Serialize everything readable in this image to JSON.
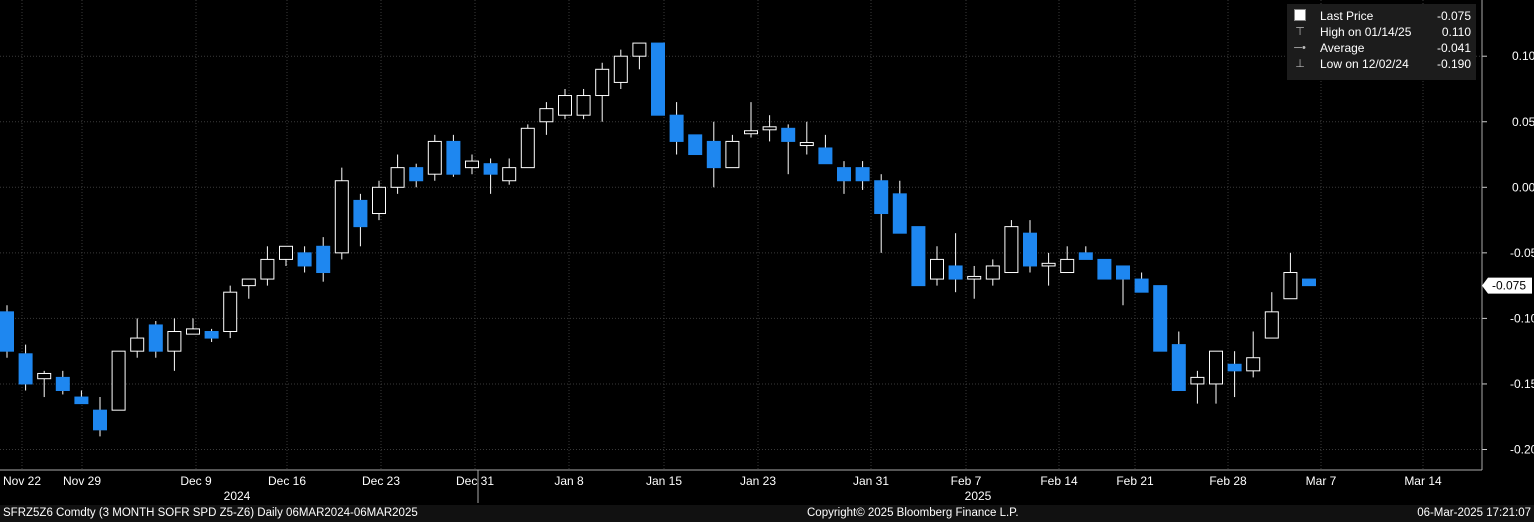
{
  "chart_data": {
    "type": "candlestick",
    "frequency": "Daily",
    "ylim": [
      -0.22,
      0.11
    ],
    "yticks": [
      0.1,
      0.05,
      0.0,
      -0.05,
      -0.1,
      -0.15,
      -0.2
    ],
    "ytick_labels": [
      "0.100",
      "0.050",
      "0.000",
      "-0.050",
      "-0.100",
      "-0.150",
      "-0.200"
    ],
    "grid": true,
    "xaxis_labels": [
      "Nov 22",
      "Nov 29",
      "Dec 9",
      "Dec 16",
      "Dec 23",
      "Dec 31",
      "Jan 8",
      "Jan 15",
      "Jan 23",
      "Jan 31",
      "Feb 7",
      "Feb 14",
      "Feb 21",
      "Feb 28",
      "Mar 7",
      "Mar 14"
    ],
    "year_labels": [
      "2024",
      "2025"
    ],
    "up_color": "#000000",
    "down_color": "#1e87f0",
    "candles": [
      {
        "o": -0.095,
        "h": -0.09,
        "l": -0.13,
        "c": -0.125
      },
      {
        "o": -0.127,
        "h": -0.12,
        "l": -0.155,
        "c": -0.15
      },
      {
        "o": -0.146,
        "h": -0.14,
        "l": -0.16,
        "c": -0.142
      },
      {
        "o": -0.145,
        "h": -0.14,
        "l": -0.158,
        "c": -0.155
      },
      {
        "o": -0.16,
        "h": -0.155,
        "l": -0.165,
        "c": -0.165
      },
      {
        "o": -0.17,
        "h": -0.16,
        "l": -0.19,
        "c": -0.185
      },
      {
        "o": -0.17,
        "h": -0.125,
        "l": -0.17,
        "c": -0.125
      },
      {
        "o": -0.125,
        "h": -0.1,
        "l": -0.13,
        "c": -0.115
      },
      {
        "o": -0.105,
        "h": -0.102,
        "l": -0.13,
        "c": -0.125
      },
      {
        "o": -0.125,
        "h": -0.1,
        "l": -0.14,
        "c": -0.11
      },
      {
        "o": -0.112,
        "h": -0.1,
        "l": -0.112,
        "c": -0.108
      },
      {
        "o": -0.11,
        "h": -0.108,
        "l": -0.118,
        "c": -0.115
      },
      {
        "o": -0.11,
        "h": -0.075,
        "l": -0.115,
        "c": -0.08
      },
      {
        "o": -0.075,
        "h": -0.07,
        "l": -0.085,
        "c": -0.07
      },
      {
        "o": -0.07,
        "h": -0.045,
        "l": -0.075,
        "c": -0.055
      },
      {
        "o": -0.055,
        "h": -0.045,
        "l": -0.06,
        "c": -0.045
      },
      {
        "o": -0.05,
        "h": -0.045,
        "l": -0.065,
        "c": -0.06
      },
      {
        "o": -0.045,
        "h": -0.038,
        "l": -0.072,
        "c": -0.065
      },
      {
        "o": -0.05,
        "h": 0.015,
        "l": -0.055,
        "c": 0.005
      },
      {
        "o": -0.01,
        "h": -0.005,
        "l": -0.045,
        "c": -0.03
      },
      {
        "o": -0.02,
        "h": 0.005,
        "l": -0.025,
        "c": 0.0
      },
      {
        "o": 0.0,
        "h": 0.025,
        "l": -0.005,
        "c": 0.015
      },
      {
        "o": 0.015,
        "h": 0.018,
        "l": 0.0,
        "c": 0.005
      },
      {
        "o": 0.01,
        "h": 0.04,
        "l": 0.005,
        "c": 0.035
      },
      {
        "o": 0.035,
        "h": 0.04,
        "l": 0.008,
        "c": 0.01
      },
      {
        "o": 0.015,
        "h": 0.025,
        "l": 0.01,
        "c": 0.02
      },
      {
        "o": 0.018,
        "h": 0.022,
        "l": -0.005,
        "c": 0.01
      },
      {
        "o": 0.005,
        "h": 0.022,
        "l": 0.002,
        "c": 0.015
      },
      {
        "o": 0.015,
        "h": 0.048,
        "l": 0.015,
        "c": 0.045
      },
      {
        "o": 0.05,
        "h": 0.065,
        "l": 0.04,
        "c": 0.06
      },
      {
        "o": 0.055,
        "h": 0.075,
        "l": 0.052,
        "c": 0.07
      },
      {
        "o": 0.055,
        "h": 0.075,
        "l": 0.052,
        "c": 0.07
      },
      {
        "o": 0.07,
        "h": 0.095,
        "l": 0.05,
        "c": 0.09
      },
      {
        "o": 0.08,
        "h": 0.105,
        "l": 0.075,
        "c": 0.1
      },
      {
        "o": 0.1,
        "h": 0.11,
        "l": 0.09,
        "c": 0.11
      },
      {
        "o": 0.11,
        "h": 0.11,
        "l": 0.055,
        "c": 0.055
      },
      {
        "o": 0.055,
        "h": 0.065,
        "l": 0.025,
        "c": 0.035
      },
      {
        "o": 0.04,
        "h": 0.04,
        "l": 0.025,
        "c": 0.025
      },
      {
        "o": 0.035,
        "h": 0.05,
        "l": 0.0,
        "c": 0.015
      },
      {
        "o": 0.015,
        "h": 0.04,
        "l": 0.015,
        "c": 0.035
      },
      {
        "o": 0.042,
        "h": 0.065,
        "l": 0.038,
        "c": 0.042
      },
      {
        "o": 0.045,
        "h": 0.055,
        "l": 0.035,
        "c": 0.045
      },
      {
        "o": 0.045,
        "h": 0.048,
        "l": 0.01,
        "c": 0.035
      },
      {
        "o": 0.033,
        "h": 0.05,
        "l": 0.025,
        "c": 0.033
      },
      {
        "o": 0.03,
        "h": 0.04,
        "l": 0.018,
        "c": 0.018
      },
      {
        "o": 0.015,
        "h": 0.02,
        "l": -0.005,
        "c": 0.005
      },
      {
        "o": 0.015,
        "h": 0.02,
        "l": -0.002,
        "c": 0.005
      },
      {
        "o": 0.005,
        "h": 0.01,
        "l": -0.05,
        "c": -0.02
      },
      {
        "o": -0.005,
        "h": 0.005,
        "l": -0.035,
        "c": -0.035
      },
      {
        "o": -0.03,
        "h": -0.03,
        "l": -0.075,
        "c": -0.075
      },
      {
        "o": -0.07,
        "h": -0.045,
        "l": -0.075,
        "c": -0.055
      },
      {
        "o": -0.06,
        "h": -0.035,
        "l": -0.08,
        "c": -0.07
      },
      {
        "o": -0.07,
        "h": -0.06,
        "l": -0.085,
        "c": -0.068
      },
      {
        "o": -0.07,
        "h": -0.055,
        "l": -0.075,
        "c": -0.06
      },
      {
        "o": -0.065,
        "h": -0.025,
        "l": -0.065,
        "c": -0.03
      },
      {
        "o": -0.035,
        "h": -0.025,
        "l": -0.065,
        "c": -0.06
      },
      {
        "o": -0.06,
        "h": -0.05,
        "l": -0.075,
        "c": -0.058
      },
      {
        "o": -0.065,
        "h": -0.045,
        "l": -0.065,
        "c": -0.055
      },
      {
        "o": -0.05,
        "h": -0.045,
        "l": -0.055,
        "c": -0.055
      },
      {
        "o": -0.055,
        "h": -0.055,
        "l": -0.07,
        "c": -0.07
      },
      {
        "o": -0.06,
        "h": -0.06,
        "l": -0.09,
        "c": -0.07
      },
      {
        "o": -0.07,
        "h": -0.065,
        "l": -0.08,
        "c": -0.08
      },
      {
        "o": -0.075,
        "h": -0.075,
        "l": -0.125,
        "c": -0.125
      },
      {
        "o": -0.12,
        "h": -0.11,
        "l": -0.155,
        "c": -0.155
      },
      {
        "o": -0.15,
        "h": -0.14,
        "l": -0.165,
        "c": -0.145
      },
      {
        "o": -0.15,
        "h": -0.125,
        "l": -0.165,
        "c": -0.125
      },
      {
        "o": -0.135,
        "h": -0.125,
        "l": -0.16,
        "c": -0.14
      },
      {
        "o": -0.14,
        "h": -0.11,
        "l": -0.145,
        "c": -0.13
      },
      {
        "o": -0.115,
        "h": -0.08,
        "l": -0.115,
        "c": -0.095
      },
      {
        "o": -0.085,
        "h": -0.05,
        "l": -0.085,
        "c": -0.065
      },
      {
        "o": -0.07,
        "h": -0.07,
        "l": -0.075,
        "c": -0.075
      }
    ],
    "last_value": -0.075,
    "last_value_label": "-0.075"
  },
  "legend": {
    "items": [
      {
        "icon": "square-icon",
        "label": "Last Price",
        "value": "-0.075"
      },
      {
        "icon": "high-icon",
        "label": "High on 01/14/25",
        "value": "0.110"
      },
      {
        "icon": "average-icon",
        "label": "Average",
        "value": "-0.041"
      },
      {
        "icon": "low-icon",
        "label": "Low on 12/02/24",
        "value": "-0.190"
      }
    ]
  },
  "footer": {
    "ticker": "SFRZ5Z6 Comdty (3 MONTH SOFR SPD  Z5-Z6)  Daily 06MAR2024-06MAR2025",
    "copyright": "Copyright© 2025 Bloomberg Finance L.P.",
    "timestamp": "06-Mar-2025 17:21:07"
  }
}
